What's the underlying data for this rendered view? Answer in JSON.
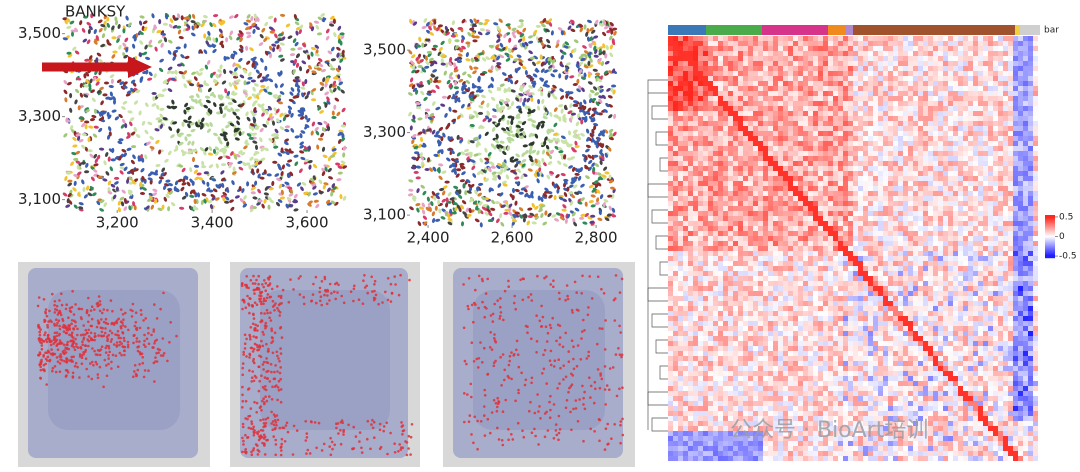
{
  "panels": {
    "spatial_a": {
      "title": "BANKSY",
      "xlim": [
        3090,
        3680
      ],
      "ylim": [
        3075,
        3545
      ],
      "xticks": [
        {
          "value": 3200,
          "label": "3,200"
        },
        {
          "value": 3400,
          "label": "3,400"
        },
        {
          "value": 3600,
          "label": "3,600"
        }
      ],
      "yticks": [
        {
          "value": 3100,
          "label": "3,100"
        },
        {
          "value": 3300,
          "label": "3,300"
        },
        {
          "value": 3500,
          "label": "3,500"
        }
      ]
    },
    "spatial_b": {
      "xlim": [
        2357,
        2845
      ],
      "ylim": [
        3076,
        3573
      ],
      "xticks": [
        {
          "value": 2400,
          "label": "2,400"
        },
        {
          "value": 2600,
          "label": "2,600"
        },
        {
          "value": 2800,
          "label": "2,800"
        }
      ],
      "yticks": [
        {
          "value": 3100,
          "label": "3,100"
        },
        {
          "value": 3300,
          "label": "3,300"
        },
        {
          "value": 3500,
          "label": "3,500"
        }
      ]
    },
    "heatmap": {
      "annotation_label": "bar",
      "legend_lim": [
        -0.55,
        0.55
      ],
      "legend_ticks": [
        0.5,
        0,
        -0.5
      ]
    }
  },
  "watermark": "公众号 · BioArt培训"
}
